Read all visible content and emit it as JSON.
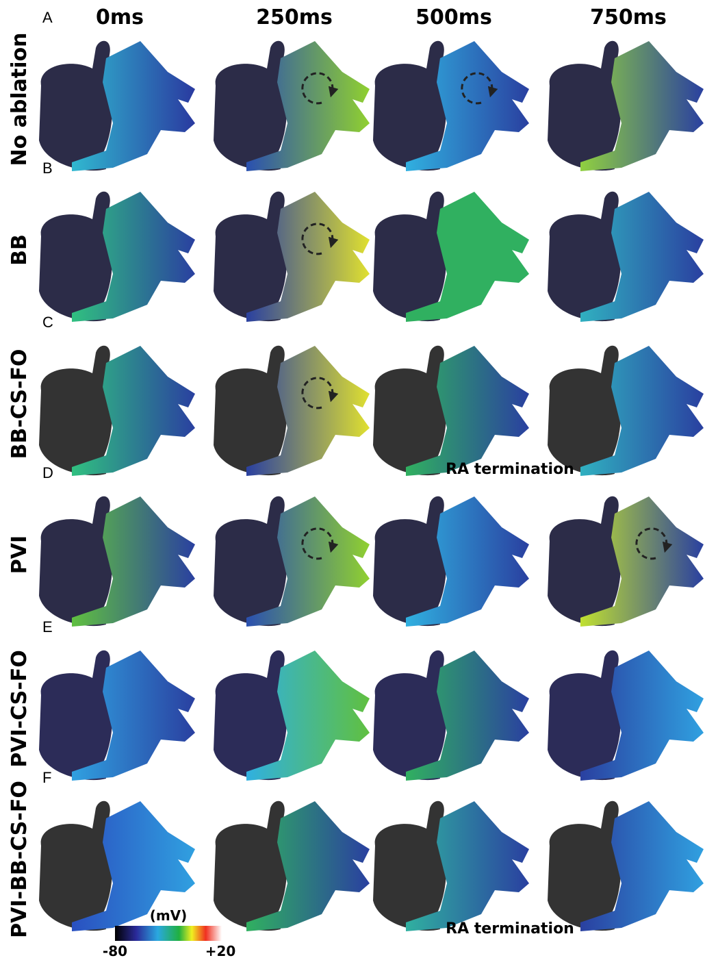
{
  "columns": [
    "0ms",
    "250ms",
    "500ms",
    "750ms"
  ],
  "rows": [
    {
      "letter": "A",
      "label": "No ablation"
    },
    {
      "letter": "B",
      "label": "BB"
    },
    {
      "letter": "C",
      "label": "BB-CS-FO"
    },
    {
      "letter": "D",
      "label": "PVI"
    },
    {
      "letter": "E",
      "label": "PVI-CS-FO"
    },
    {
      "letter": "F",
      "label": "PVI-BB-CS-FO"
    }
  ],
  "annotations": [
    "RA termination",
    "RA termination"
  ],
  "colorbar": {
    "unit": "(mV)",
    "min": "-80",
    "max": "+20"
  }
}
